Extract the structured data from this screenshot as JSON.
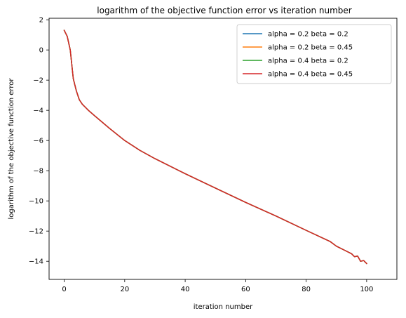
{
  "chart_data": {
    "type": "line",
    "title": "logarithm of the objective function error vs iteration number",
    "xlabel": "iteration number",
    "ylabel": "logarithm of the objective function error",
    "xlim": [
      -5,
      110
    ],
    "ylim": [
      -15.2,
      2.1
    ],
    "xticks": [
      0,
      20,
      40,
      60,
      80,
      100
    ],
    "yticks": [
      2,
      0,
      -2,
      -4,
      -6,
      -8,
      -10,
      -12,
      -14
    ],
    "grid": false,
    "legend_position": "upper right",
    "x": [
      0,
      1,
      2,
      3,
      4,
      5,
      6,
      7,
      8,
      10,
      15,
      20,
      25,
      30,
      40,
      50,
      60,
      70,
      80,
      88,
      90,
      93,
      95,
      96,
      97,
      98,
      99,
      100
    ],
    "series": [
      {
        "name": "alpha = 0.2 beta = 0.2",
        "color": "#1f77b4",
        "values": [
          1.3,
          0.9,
          0.0,
          -1.9,
          -2.7,
          -3.3,
          -3.6,
          -3.8,
          -4.0,
          -4.35,
          -5.2,
          -6.0,
          -6.65,
          -7.2,
          -8.2,
          -9.15,
          -10.1,
          -11.0,
          -11.95,
          -12.7,
          -13.0,
          -13.3,
          -13.5,
          -13.7,
          -13.65,
          -14.0,
          -13.95,
          -14.15
        ]
      },
      {
        "name": "alpha = 0.2 beta = 0.45",
        "color": "#ff7f0e",
        "values": [
          1.3,
          0.9,
          0.0,
          -1.9,
          -2.7,
          -3.3,
          -3.6,
          -3.8,
          -4.0,
          -4.35,
          -5.2,
          -6.0,
          -6.65,
          -7.2,
          -8.2,
          -9.15,
          -10.1,
          -11.0,
          -11.95,
          -12.7,
          -13.0,
          -13.3,
          -13.5,
          -13.7,
          -13.65,
          -14.0,
          -13.95,
          -14.15
        ]
      },
      {
        "name": "alpha = 0.4 beta = 0.2",
        "color": "#2ca02c",
        "values": [
          1.3,
          0.9,
          0.0,
          -1.9,
          -2.7,
          -3.3,
          -3.6,
          -3.8,
          -4.0,
          -4.35,
          -5.2,
          -6.0,
          -6.65,
          -7.2,
          -8.2,
          -9.15,
          -10.1,
          -11.0,
          -11.95,
          -12.7,
          -13.0,
          -13.3,
          -13.5,
          -13.7,
          -13.65,
          -14.0,
          -13.95,
          -14.15
        ]
      },
      {
        "name": "alpha = 0.4 beta = 0.45",
        "color": "#d62728",
        "values": [
          1.3,
          0.9,
          0.0,
          -1.9,
          -2.7,
          -3.3,
          -3.6,
          -3.8,
          -4.0,
          -4.35,
          -5.2,
          -6.0,
          -6.65,
          -7.2,
          -8.2,
          -9.15,
          -10.1,
          -11.0,
          -11.95,
          -12.7,
          -13.0,
          -13.3,
          -13.5,
          -13.7,
          -13.65,
          -14.0,
          -13.95,
          -14.15
        ]
      }
    ]
  }
}
